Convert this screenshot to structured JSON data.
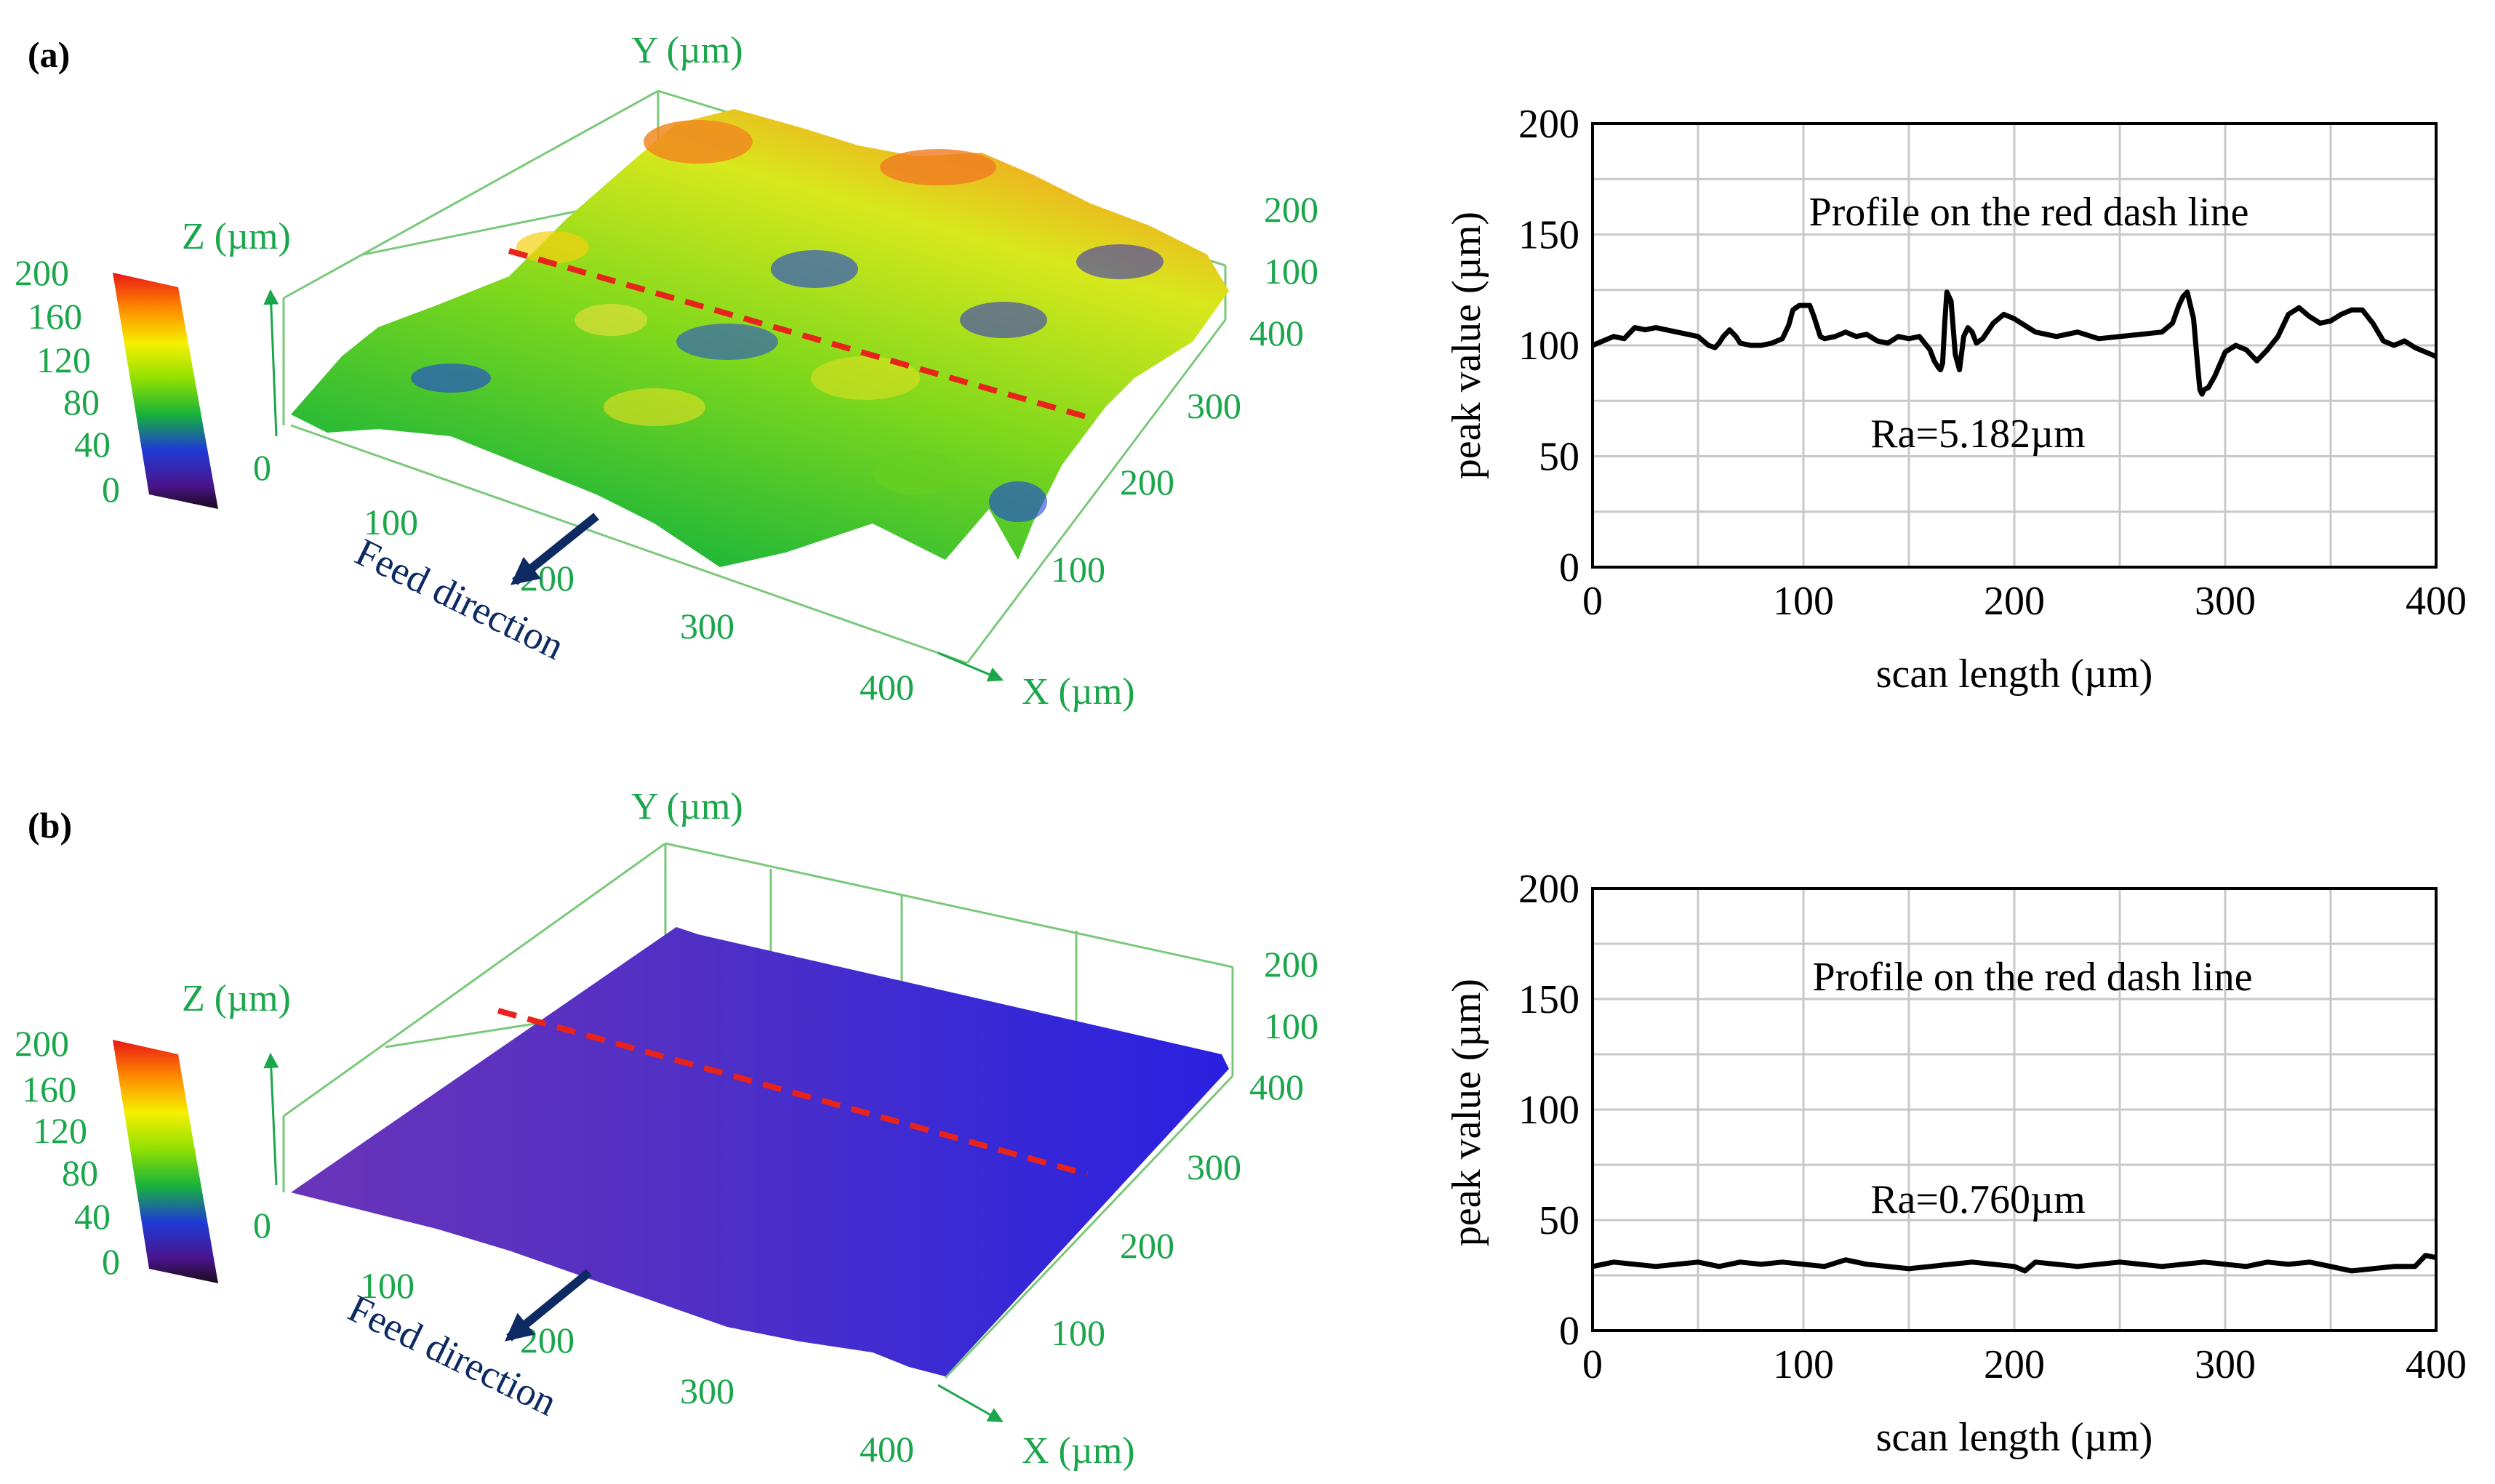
{
  "colors": {
    "axis_green": "#1aa64a",
    "feed_navy": "#0d2a63",
    "dash_red": "#e8231b",
    "profile_line": "#000000",
    "grid": "#c8c8c8"
  },
  "panels": [
    {
      "label_open": "(",
      "label_letter": "a",
      "label_close": ")",
      "surface_3d": {
        "y_axis_label": "Y (µm)",
        "z_axis_label": "Z (µm)",
        "x_axis_label": "X (µm)",
        "feed_label": "Feed direction",
        "z_zero_label": "0",
        "z_side_ticks": [
          "200",
          "100"
        ],
        "x_ticks": [
          "100",
          "200",
          "300",
          "400"
        ],
        "y_ticks": [
          "400",
          "300",
          "200",
          "100"
        ],
        "colorbar_ticks": [
          "200",
          "160",
          "120",
          "80",
          "40",
          "0"
        ],
        "surface_style": "rough"
      },
      "chart_data": {
        "type": "line",
        "title": "Profile on the red dash line",
        "annotation": "Ra=5.182µm",
        "xlabel": "scan length (µm)",
        "ylabel": "peak value (µm)",
        "xlim": [
          0,
          400
        ],
        "ylim": [
          0,
          200
        ],
        "x_ticks": [
          "0",
          "100",
          "200",
          "300",
          "400"
        ],
        "y_ticks": [
          "0",
          "50",
          "100",
          "150",
          "200"
        ],
        "x": [
          0,
          5,
          10,
          15,
          20,
          25,
          30,
          40,
          50,
          55,
          58,
          60,
          62,
          65,
          68,
          70,
          75,
          80,
          85,
          90,
          93,
          95,
          98,
          100,
          103,
          105,
          108,
          110,
          115,
          120,
          125,
          130,
          135,
          140,
          145,
          150,
          155,
          160,
          162,
          164,
          165,
          166,
          167,
          168,
          170,
          172,
          174,
          176,
          178,
          180,
          182,
          185,
          190,
          195,
          200,
          210,
          220,
          230,
          240,
          250,
          260,
          270,
          275,
          278,
          280,
          282,
          285,
          287,
          288,
          289,
          290,
          292,
          295,
          300,
          305,
          310,
          315,
          320,
          325,
          330,
          335,
          340,
          345,
          350,
          355,
          360,
          365,
          370,
          375,
          380,
          385,
          390,
          395,
          400
        ],
        "values": [
          100,
          102,
          104,
          103,
          108,
          107,
          108,
          106,
          104,
          100,
          99,
          101,
          104,
          107,
          104,
          101,
          100,
          100,
          101,
          103,
          109,
          116,
          118,
          118,
          118,
          113,
          104,
          103,
          104,
          106,
          104,
          105,
          102,
          101,
          104,
          103,
          104,
          98,
          93,
          90,
          89,
          92,
          110,
          124,
          120,
          96,
          89,
          104,
          108,
          106,
          101,
          103,
          110,
          114,
          112,
          106,
          104,
          106,
          103,
          104,
          105,
          106,
          110,
          118,
          122,
          124,
          112,
          90,
          80,
          78,
          80,
          81,
          86,
          97,
          100,
          98,
          93,
          98,
          104,
          114,
          117,
          113,
          110,
          111,
          114,
          116,
          116,
          110,
          102,
          100,
          102,
          99,
          97,
          95
        ]
      }
    },
    {
      "label_open": "(",
      "label_letter": "b",
      "label_close": ")",
      "surface_3d": {
        "y_axis_label": "Y (µm)",
        "z_axis_label": "Z (µm)",
        "x_axis_label": "X (µm)",
        "feed_label": "Feed direction",
        "z_zero_label": "0",
        "z_side_ticks": [
          "200",
          "100"
        ],
        "x_ticks": [
          "100",
          "200",
          "300",
          "400"
        ],
        "y_ticks": [
          "400",
          "300",
          "200",
          "100"
        ],
        "colorbar_ticks": [
          "200",
          "160",
          "120",
          "80",
          "40",
          "0"
        ],
        "surface_style": "smooth"
      },
      "chart_data": {
        "type": "line",
        "title": "Profile on the red dash line",
        "annotation": "Ra=0.760µm",
        "xlabel": "scan length (µm)",
        "ylabel": "peak value (µm)",
        "xlim": [
          0,
          400
        ],
        "ylim": [
          0,
          200
        ],
        "x_ticks": [
          "0",
          "100",
          "200",
          "300",
          "400"
        ],
        "y_ticks": [
          "0",
          "50",
          "100",
          "150",
          "200"
        ],
        "x": [
          0,
          10,
          20,
          30,
          40,
          50,
          60,
          70,
          80,
          90,
          100,
          110,
          120,
          130,
          140,
          150,
          160,
          170,
          180,
          190,
          200,
          205,
          210,
          220,
          230,
          240,
          250,
          260,
          270,
          280,
          290,
          300,
          310,
          320,
          330,
          340,
          350,
          355,
          360,
          370,
          380,
          390,
          395,
          400
        ],
        "values": [
          29,
          31,
          30,
          29,
          30,
          31,
          29,
          31,
          30,
          31,
          30,
          29,
          32,
          30,
          29,
          28,
          29,
          30,
          31,
          30,
          29,
          27,
          31,
          30,
          29,
          30,
          31,
          30,
          29,
          30,
          31,
          30,
          29,
          31,
          30,
          31,
          29,
          28,
          27,
          28,
          29,
          29,
          34,
          33
        ]
      }
    }
  ]
}
